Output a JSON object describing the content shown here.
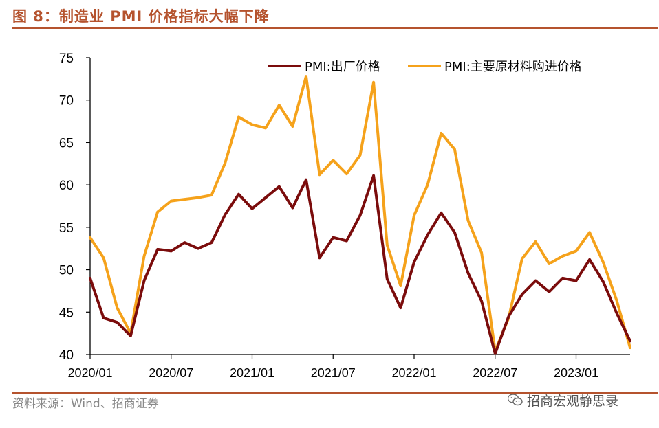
{
  "figure": {
    "title": "图 8：制造业 PMI 价格指标大幅下降",
    "source": "资料来源：Wind、招商证券",
    "brand": "招商宏观静思录"
  },
  "chart_data": {
    "type": "line",
    "title": "制造业 PMI 价格指标大幅下降",
    "xlabel": "",
    "ylabel": "",
    "ylim": [
      40,
      75
    ],
    "yticks": [
      40,
      45,
      50,
      55,
      60,
      65,
      70,
      75
    ],
    "grid": false,
    "legend_position": "top-right",
    "categories": [
      "2020/01",
      "2020/02",
      "2020/03",
      "2020/04",
      "2020/05",
      "2020/06",
      "2020/07",
      "2020/08",
      "2020/09",
      "2020/10",
      "2020/11",
      "2020/12",
      "2021/01",
      "2021/02",
      "2021/03",
      "2021/04",
      "2021/05",
      "2021/06",
      "2021/07",
      "2021/08",
      "2021/09",
      "2021/10",
      "2021/11",
      "2021/12",
      "2022/01",
      "2022/02",
      "2022/03",
      "2022/04",
      "2022/05",
      "2022/06",
      "2022/07",
      "2022/08",
      "2022/09",
      "2022/10",
      "2022/11",
      "2022/12",
      "2023/01",
      "2023/02",
      "2023/03",
      "2023/04",
      "2023/05"
    ],
    "x_tick_labels": [
      "2020/01",
      "2020/07",
      "2021/01",
      "2021/07",
      "2022/01",
      "2022/07",
      "2023/01"
    ],
    "series": [
      {
        "name": "PMI:出厂价格",
        "color": "#7b0c0c",
        "values": [
          49.0,
          44.3,
          43.8,
          42.2,
          48.7,
          52.4,
          52.2,
          53.2,
          52.5,
          53.2,
          56.5,
          58.9,
          57.2,
          58.5,
          59.8,
          57.3,
          60.6,
          51.4,
          53.8,
          53.4,
          56.4,
          61.1,
          48.9,
          45.5,
          50.9,
          54.1,
          56.7,
          54.4,
          49.6,
          46.3,
          40.1,
          44.5,
          47.1,
          48.7,
          47.4,
          49.0,
          48.7,
          51.2,
          48.6,
          44.9,
          41.6
        ]
      },
      {
        "name": "PMI:主要原材料购进价格",
        "color": "#f5a21b",
        "values": [
          53.8,
          51.4,
          45.5,
          42.5,
          51.6,
          56.8,
          58.1,
          58.3,
          58.5,
          58.8,
          62.6,
          68.0,
          67.1,
          66.7,
          69.4,
          66.9,
          72.8,
          61.2,
          62.9,
          61.3,
          63.5,
          72.1,
          52.9,
          48.1,
          56.4,
          60.0,
          66.1,
          64.2,
          55.8,
          52.0,
          40.4,
          44.3,
          51.3,
          53.3,
          50.7,
          51.6,
          52.2,
          54.4,
          50.9,
          46.4,
          40.8
        ]
      }
    ]
  }
}
